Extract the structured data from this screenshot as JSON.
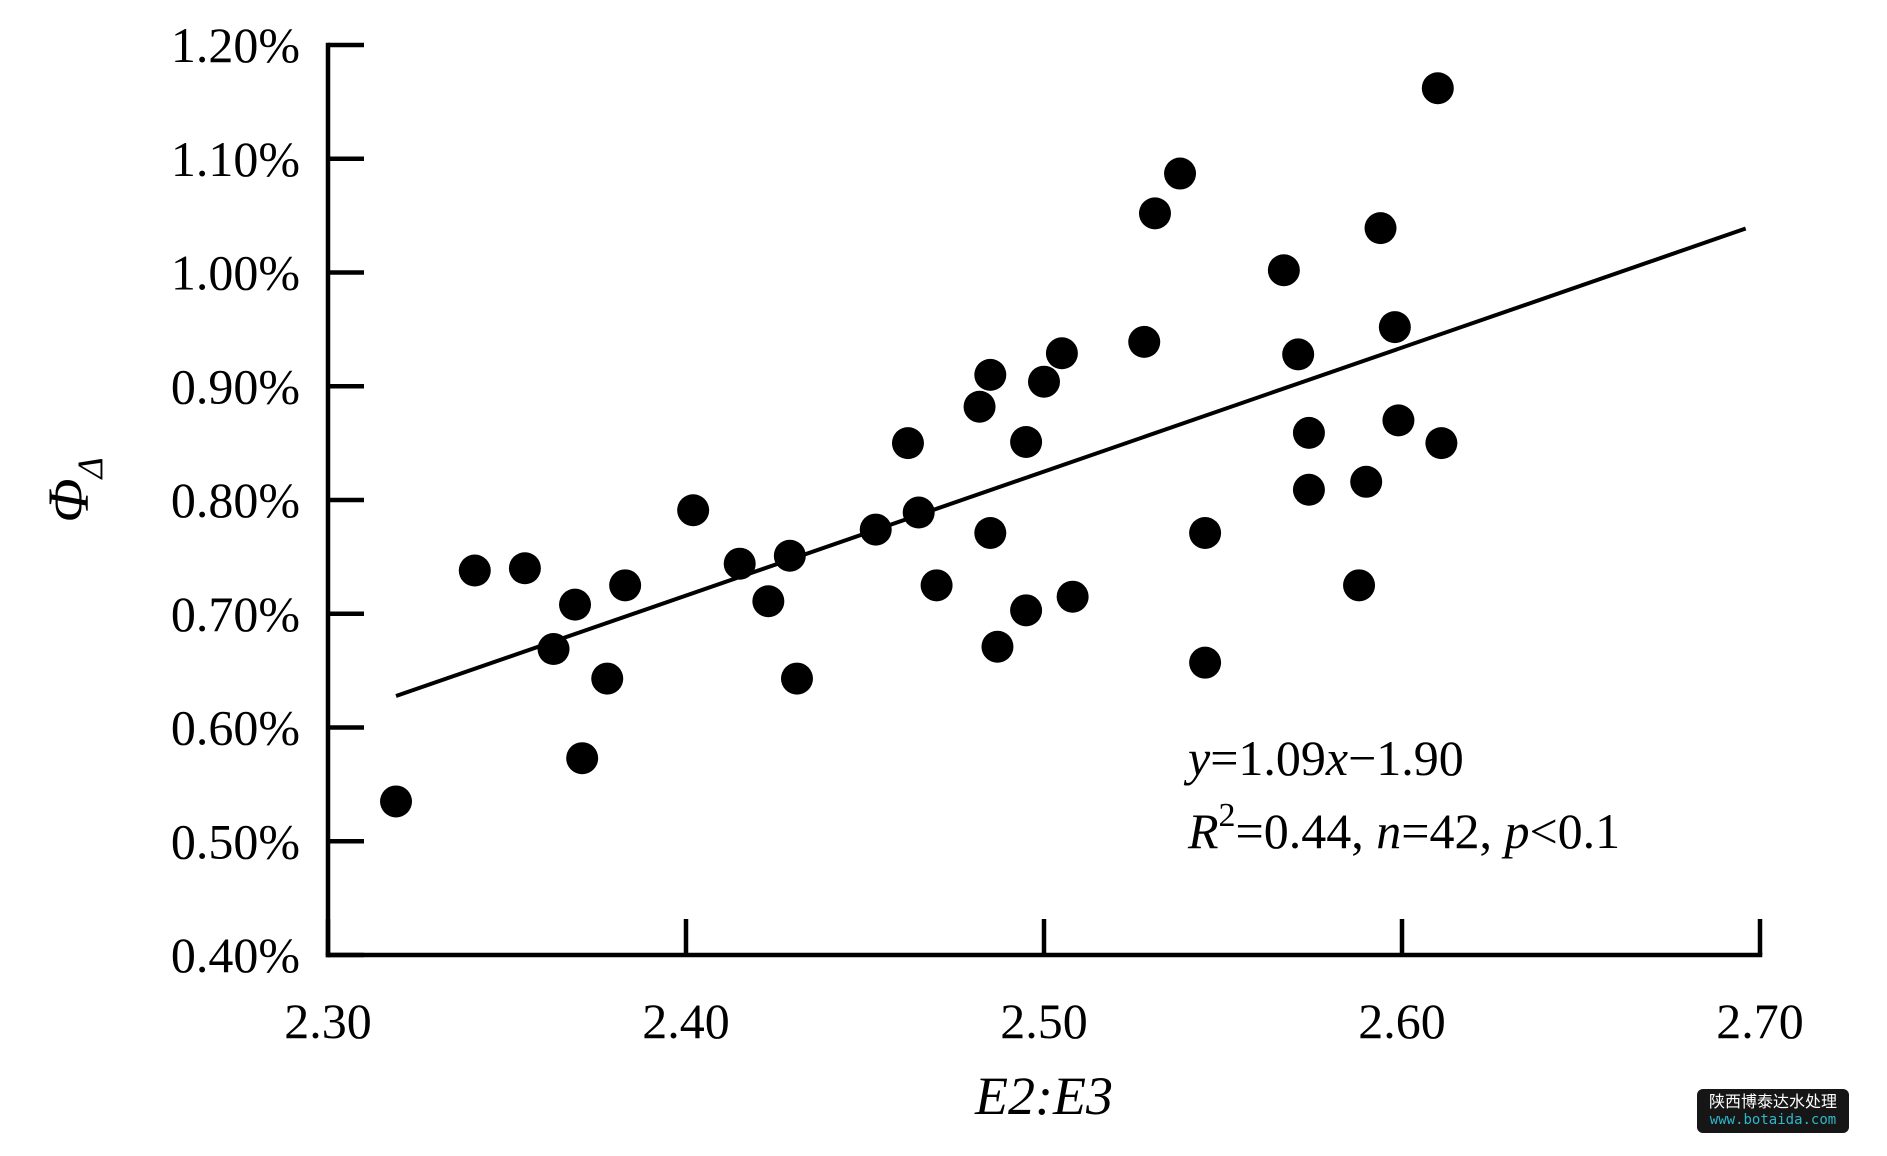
{
  "watermark": {
    "line1": "陕西博泰达水处理",
    "line2": "www.botaida.com"
  },
  "chart_data": {
    "type": "scatter",
    "title": "",
    "xlabel": "E2:E3",
    "ylabel": {
      "base": "Φ",
      "subscript": "Δ"
    },
    "xlim": [
      2.3,
      2.7
    ],
    "ylim_percent": [
      0.4,
      1.2
    ],
    "grid": false,
    "legend": "none",
    "x_ticks": [
      {
        "value": 2.3,
        "label": "2.30"
      },
      {
        "value": 2.4,
        "label": "2.40"
      },
      {
        "value": 2.5,
        "label": "2.50"
      },
      {
        "value": 2.6,
        "label": "2.60"
      },
      {
        "value": 2.7,
        "label": "2.70"
      }
    ],
    "y_ticks": [
      {
        "value": 0.4,
        "label": "0.40%"
      },
      {
        "value": 0.5,
        "label": "0.50%"
      },
      {
        "value": 0.6,
        "label": "0.60%"
      },
      {
        "value": 0.7,
        "label": "0.70%"
      },
      {
        "value": 0.8,
        "label": "0.80%"
      },
      {
        "value": 0.9,
        "label": "0.90%"
      },
      {
        "value": 1.0,
        "label": "1.00%"
      },
      {
        "value": 1.1,
        "label": "1.10%"
      },
      {
        "value": 1.2,
        "label": "1.20%"
      }
    ],
    "points": [
      [
        2.319,
        0.535
      ],
      [
        2.341,
        0.738
      ],
      [
        2.355,
        0.74
      ],
      [
        2.363,
        0.669
      ],
      [
        2.369,
        0.708
      ],
      [
        2.371,
        0.573
      ],
      [
        2.378,
        0.643
      ],
      [
        2.383,
        0.725
      ],
      [
        2.402,
        0.791
      ],
      [
        2.415,
        0.744
      ],
      [
        2.423,
        0.711
      ],
      [
        2.429,
        0.751
      ],
      [
        2.431,
        0.643
      ],
      [
        2.453,
        0.774
      ],
      [
        2.462,
        0.85
      ],
      [
        2.465,
        0.789
      ],
      [
        2.47,
        0.725
      ],
      [
        2.482,
        0.882
      ],
      [
        2.485,
        0.91
      ],
      [
        2.485,
        0.771
      ],
      [
        2.487,
        0.671
      ],
      [
        2.495,
        0.851
      ],
      [
        2.495,
        0.703
      ],
      [
        2.5,
        0.904
      ],
      [
        2.505,
        0.929
      ],
      [
        2.508,
        0.715
      ],
      [
        2.528,
        0.939
      ],
      [
        2.531,
        1.052
      ],
      [
        2.538,
        1.087
      ],
      [
        2.545,
        0.771
      ],
      [
        2.545,
        0.657
      ],
      [
        2.567,
        1.002
      ],
      [
        2.571,
        0.928
      ],
      [
        2.574,
        0.859
      ],
      [
        2.574,
        0.809
      ],
      [
        2.588,
        0.725
      ],
      [
        2.59,
        0.816
      ],
      [
        2.594,
        1.039
      ],
      [
        2.598,
        0.952
      ],
      [
        2.599,
        0.87
      ],
      [
        2.61,
        1.162
      ],
      [
        2.611,
        0.85
      ]
    ],
    "trendline": {
      "equation": "y=1.09x−1.90",
      "slope": 1.09,
      "intercept": -1.9,
      "x_start": 2.319,
      "x_end": 2.696
    },
    "annotation": {
      "lines": [
        {
          "segments": [
            {
              "text": "y",
              "italic": true
            },
            {
              "text": "=1.09"
            },
            {
              "text": "x",
              "italic": true
            },
            {
              "text": "−1.90"
            }
          ]
        },
        {
          "segments": [
            {
              "text": "R",
              "italic": true
            },
            {
              "text": "2",
              "superscript": true
            },
            {
              "text": "=0.44, "
            },
            {
              "text": "n",
              "italic": true
            },
            {
              "text": "=42, "
            },
            {
              "text": "p",
              "italic": true
            },
            {
              "text": "<0.1"
            }
          ]
        }
      ]
    },
    "stats": {
      "r_squared": 0.44,
      "n": 42,
      "p": "<0.1"
    },
    "colors": {
      "foreground": "#000000",
      "background": "#ffffff",
      "watermark_bg": "#161616",
      "watermark_text": "#ffffff",
      "watermark_url": "#2eb6ca"
    }
  }
}
